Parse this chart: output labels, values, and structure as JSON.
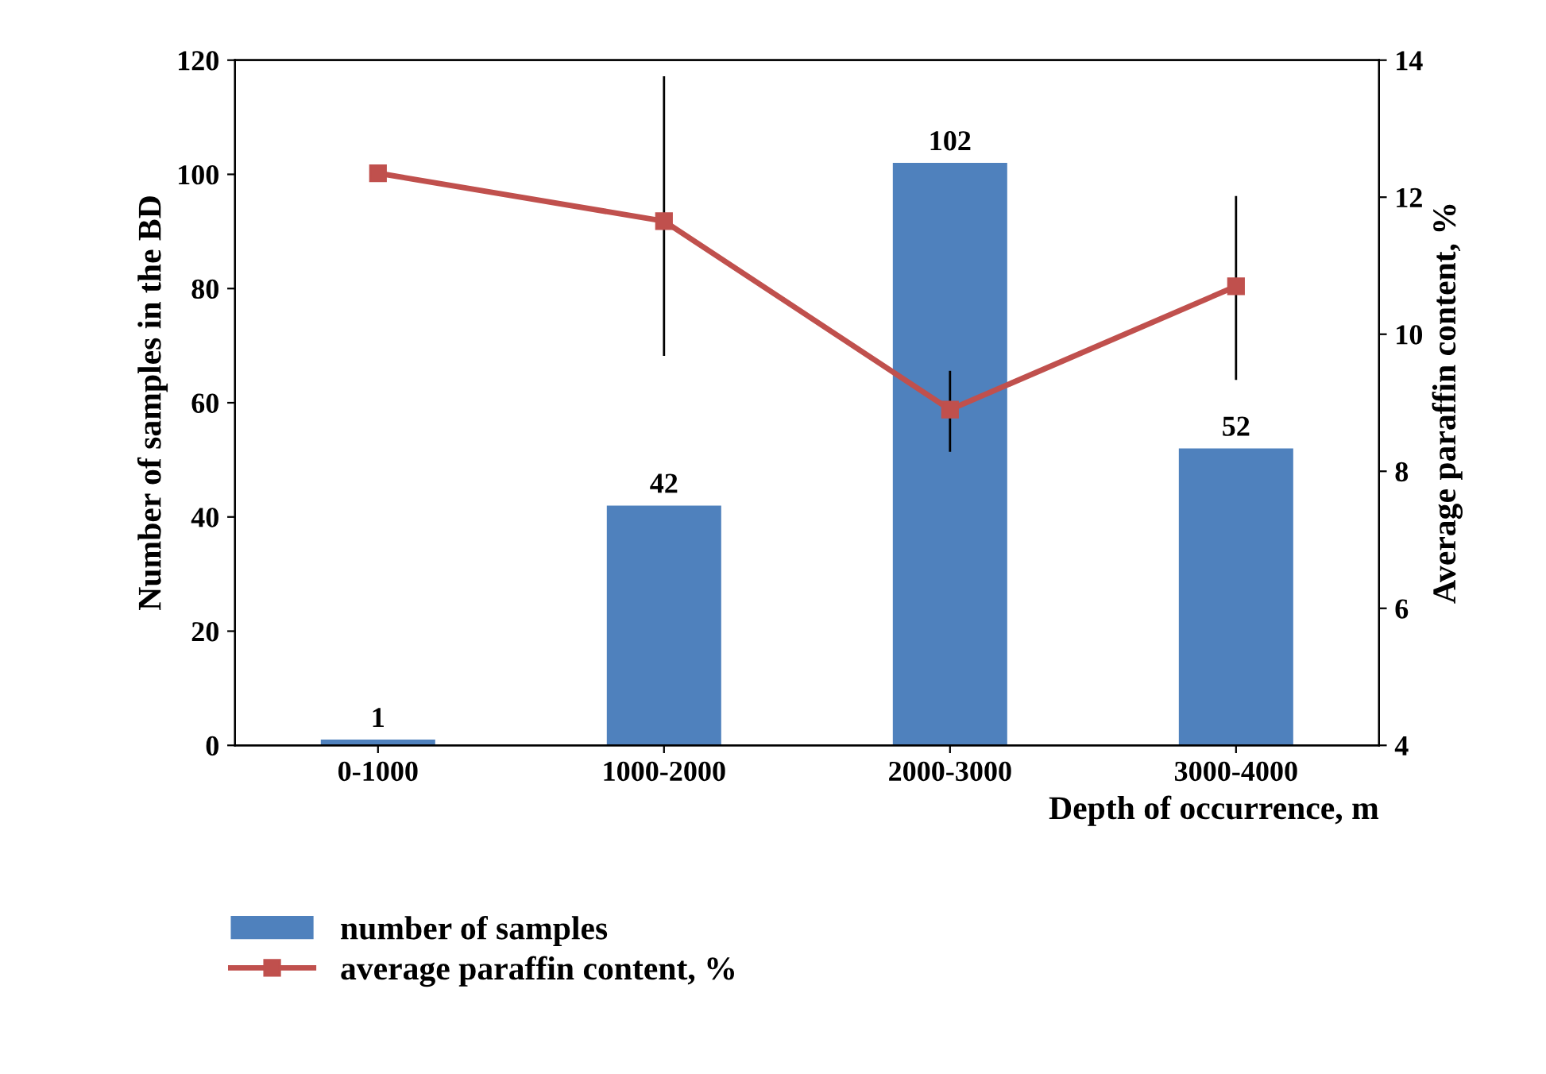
{
  "chart_data": {
    "type": "bar",
    "categories": [
      "0-1000",
      "1000-2000",
      "2000-3000",
      "3000-4000"
    ],
    "xlabel": "Depth of occurrence, m",
    "ylabel": "Number of samples in the BD",
    "y2label": "Average paraffin content, %",
    "series": [
      {
        "name": "number of samples",
        "color": "#4f81bd",
        "values": [
          1,
          42,
          102,
          52
        ],
        "data_labels": true
      },
      {
        "name": "average paraffin content, %",
        "type": "line",
        "axis": "y2",
        "color": "#c0504d",
        "marker": "square",
        "values": [
          12.35,
          11.65,
          8.9,
          10.7
        ],
        "errors": [
          null,
          [
            9.7,
            13.75
          ],
          [
            8.3,
            9.45
          ],
          [
            9.35,
            12.0
          ]
        ]
      }
    ],
    "ylim": [
      0,
      120
    ],
    "yticks": [
      0,
      20,
      40,
      60,
      80,
      100,
      120
    ],
    "y2lim": [
      4,
      14
    ],
    "y2ticks": [
      4,
      6,
      8,
      10,
      12,
      14
    ],
    "grid": false,
    "legend": "bottom left"
  }
}
